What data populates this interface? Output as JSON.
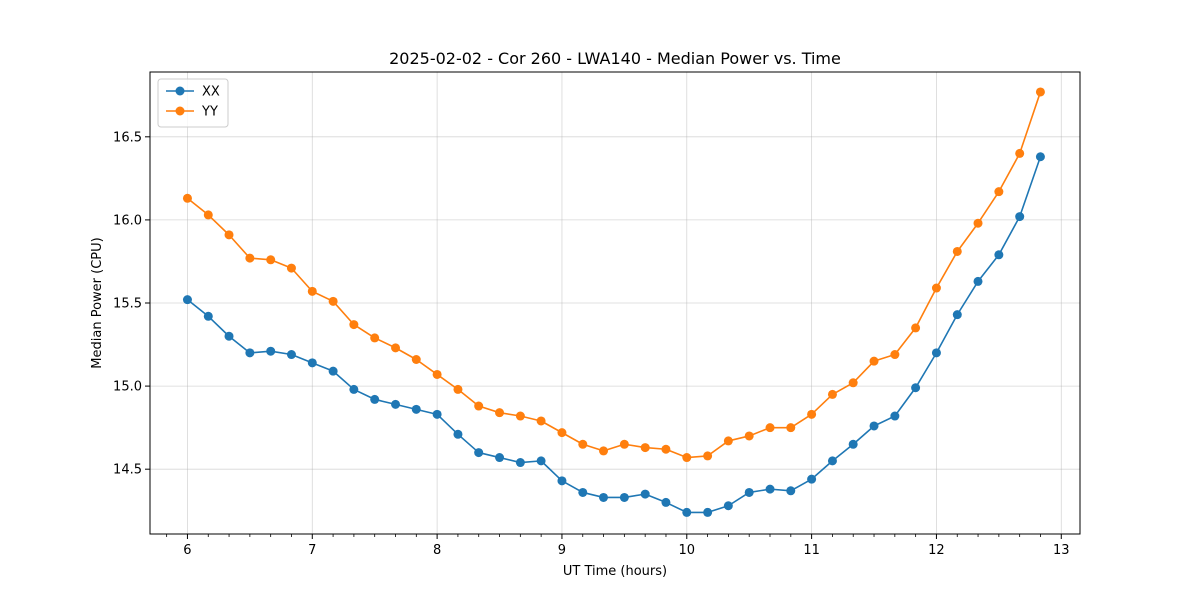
{
  "chart_data": {
    "type": "line",
    "title": "2025-02-02 - Cor 260 - LWA140 - Median Power vs. Time",
    "xlabel": "UT Time (hours)",
    "ylabel": "Median Power (CPU)",
    "xlim": [
      5.7,
      13.15
    ],
    "ylim": [
      14.11,
      16.89
    ],
    "xticks": [
      6,
      7,
      8,
      9,
      10,
      11,
      12,
      13
    ],
    "xtick_labels": [
      "6",
      "7",
      "8",
      "9",
      "10",
      "11",
      "12",
      "13"
    ],
    "yticks": [
      14.5,
      15.0,
      15.5,
      16.0,
      16.5
    ],
    "ytick_labels": [
      "14.5",
      "15.0",
      "15.5",
      "16.0",
      "16.5"
    ],
    "grid": true,
    "legend_position": "top-left",
    "x": [
      6.0,
      6.167,
      6.333,
      6.5,
      6.667,
      6.833,
      7.0,
      7.167,
      7.333,
      7.5,
      7.667,
      7.833,
      8.0,
      8.167,
      8.333,
      8.5,
      8.667,
      8.833,
      9.0,
      9.167,
      9.333,
      9.5,
      9.667,
      9.833,
      10.0,
      10.167,
      10.333,
      10.5,
      10.667,
      10.833,
      11.0,
      11.167,
      11.333,
      11.5,
      11.667,
      11.833,
      12.0,
      12.167,
      12.333,
      12.5,
      12.667,
      12.833
    ],
    "series": [
      {
        "name": "XX",
        "color": "#1f77b4",
        "values": [
          15.52,
          15.42,
          15.3,
          15.2,
          15.21,
          15.19,
          15.14,
          15.09,
          14.98,
          14.92,
          14.89,
          14.86,
          14.83,
          14.71,
          14.6,
          14.57,
          14.54,
          14.55,
          14.43,
          14.36,
          14.33,
          14.33,
          14.35,
          14.3,
          14.24,
          14.24,
          14.28,
          14.36,
          14.38,
          14.37,
          14.44,
          14.55,
          14.65,
          14.76,
          14.82,
          14.99,
          15.2,
          15.43,
          15.63,
          15.79,
          16.02,
          16.38
        ]
      },
      {
        "name": "YY",
        "color": "#ff7f0e",
        "values": [
          16.13,
          16.03,
          15.91,
          15.77,
          15.76,
          15.71,
          15.57,
          15.51,
          15.37,
          15.29,
          15.23,
          15.16,
          15.07,
          14.98,
          14.88,
          14.84,
          14.82,
          14.79,
          14.72,
          14.65,
          14.61,
          14.65,
          14.63,
          14.62,
          14.57,
          14.58,
          14.67,
          14.7,
          14.75,
          14.75,
          14.83,
          14.95,
          15.02,
          15.15,
          15.19,
          15.35,
          15.59,
          15.81,
          15.98,
          16.17,
          16.4,
          16.77
        ]
      }
    ]
  }
}
